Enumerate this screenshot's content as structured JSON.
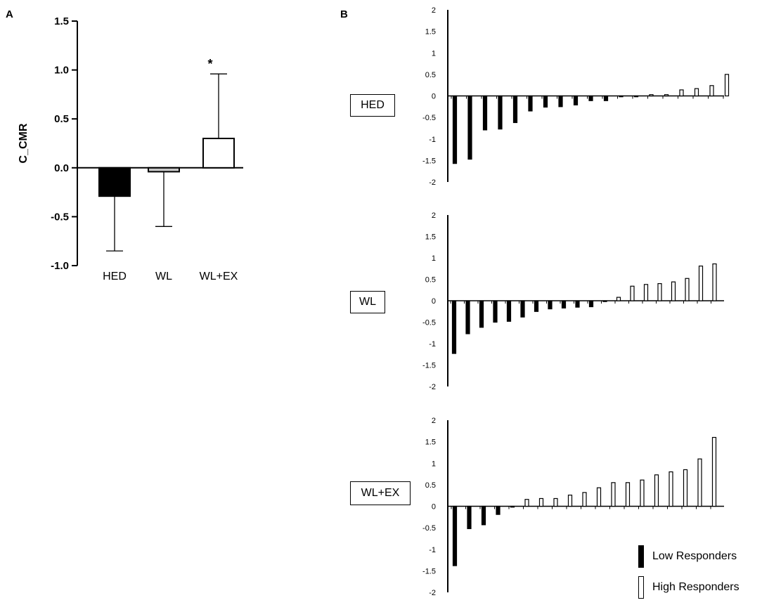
{
  "panel_labels": {
    "a": "A",
    "b": "B"
  },
  "chart_data": [
    {
      "type": "bar",
      "panel": "A",
      "ylabel": "C_CMR",
      "ylim": [
        -1.0,
        1.5
      ],
      "yticks": [
        1.5,
        1.0,
        0.5,
        0.0,
        -0.5,
        -1.0
      ],
      "ytick_labels": [
        "1.5",
        "1.0",
        "0.5",
        "0.0",
        "-0.5",
        "-1.0"
      ],
      "categories": [
        "HED",
        "WL",
        "WL+EX"
      ],
      "values": [
        -0.29,
        -0.04,
        0.3
      ],
      "error_sd": [
        0.56,
        0.56,
        0.66
      ],
      "bar_fills": [
        "#000000",
        "#c8c8c8",
        "#ffffff"
      ],
      "annotations": [
        "",
        "",
        "*"
      ]
    },
    {
      "type": "bar",
      "panel": "B",
      "group": "HED",
      "ylim": [
        -2,
        2
      ],
      "ytick_labels": [
        "2",
        "1.5",
        "1",
        "0.5",
        "0",
        "-0.5",
        "-1",
        "-1.5",
        "-2"
      ],
      "values": [
        -1.57,
        -1.47,
        -0.79,
        -0.77,
        -0.62,
        -0.35,
        -0.26,
        -0.25,
        -0.21,
        -0.11,
        -0.11,
        -0.02,
        -0.02,
        0.03,
        0.03,
        0.14,
        0.17,
        0.24,
        0.5
      ],
      "responder_type": [
        "low",
        "low",
        "low",
        "low",
        "low",
        "low",
        "low",
        "low",
        "low",
        "low",
        "low",
        "low",
        "low",
        "high",
        "high",
        "high",
        "high",
        "high",
        "high"
      ]
    },
    {
      "type": "bar",
      "panel": "B",
      "group": "WL",
      "ylim": [
        -2,
        2
      ],
      "ytick_labels": [
        "2",
        "1.5",
        "1",
        "0.5",
        "0",
        "-0.5",
        "-1",
        "-1.5",
        "-2"
      ],
      "values": [
        -1.23,
        -0.77,
        -0.62,
        -0.5,
        -0.48,
        -0.38,
        -0.25,
        -0.19,
        -0.17,
        -0.15,
        -0.14,
        -0.02,
        0.08,
        0.34,
        0.38,
        0.4,
        0.44,
        0.52,
        0.81,
        0.86
      ],
      "responder_type": [
        "low",
        "low",
        "low",
        "low",
        "low",
        "low",
        "low",
        "low",
        "low",
        "low",
        "low",
        "low",
        "high",
        "high",
        "high",
        "high",
        "high",
        "high",
        "high",
        "high"
      ]
    },
    {
      "type": "bar",
      "panel": "B",
      "group": "WL+EX",
      "ylim": [
        -2,
        2
      ],
      "ytick_labels": [
        "2",
        "1.5",
        "1",
        "0.5",
        "0",
        "-0.5",
        "-1",
        "-1.5",
        "-2"
      ],
      "values": [
        -1.38,
        -0.52,
        -0.43,
        -0.19,
        -0.02,
        0.16,
        0.18,
        0.18,
        0.26,
        0.32,
        0.43,
        0.55,
        0.55,
        0.61,
        0.73,
        0.8,
        0.85,
        1.1,
        1.6
      ],
      "responder_type": [
        "low",
        "low",
        "low",
        "low",
        "low",
        "high",
        "high",
        "high",
        "high",
        "high",
        "high",
        "high",
        "high",
        "high",
        "high",
        "high",
        "high",
        "high",
        "high"
      ]
    }
  ],
  "legend": {
    "low": {
      "label": "Low Responders",
      "color": "#000000"
    },
    "high": {
      "label": "High Responders",
      "color": "#ffffff"
    }
  }
}
